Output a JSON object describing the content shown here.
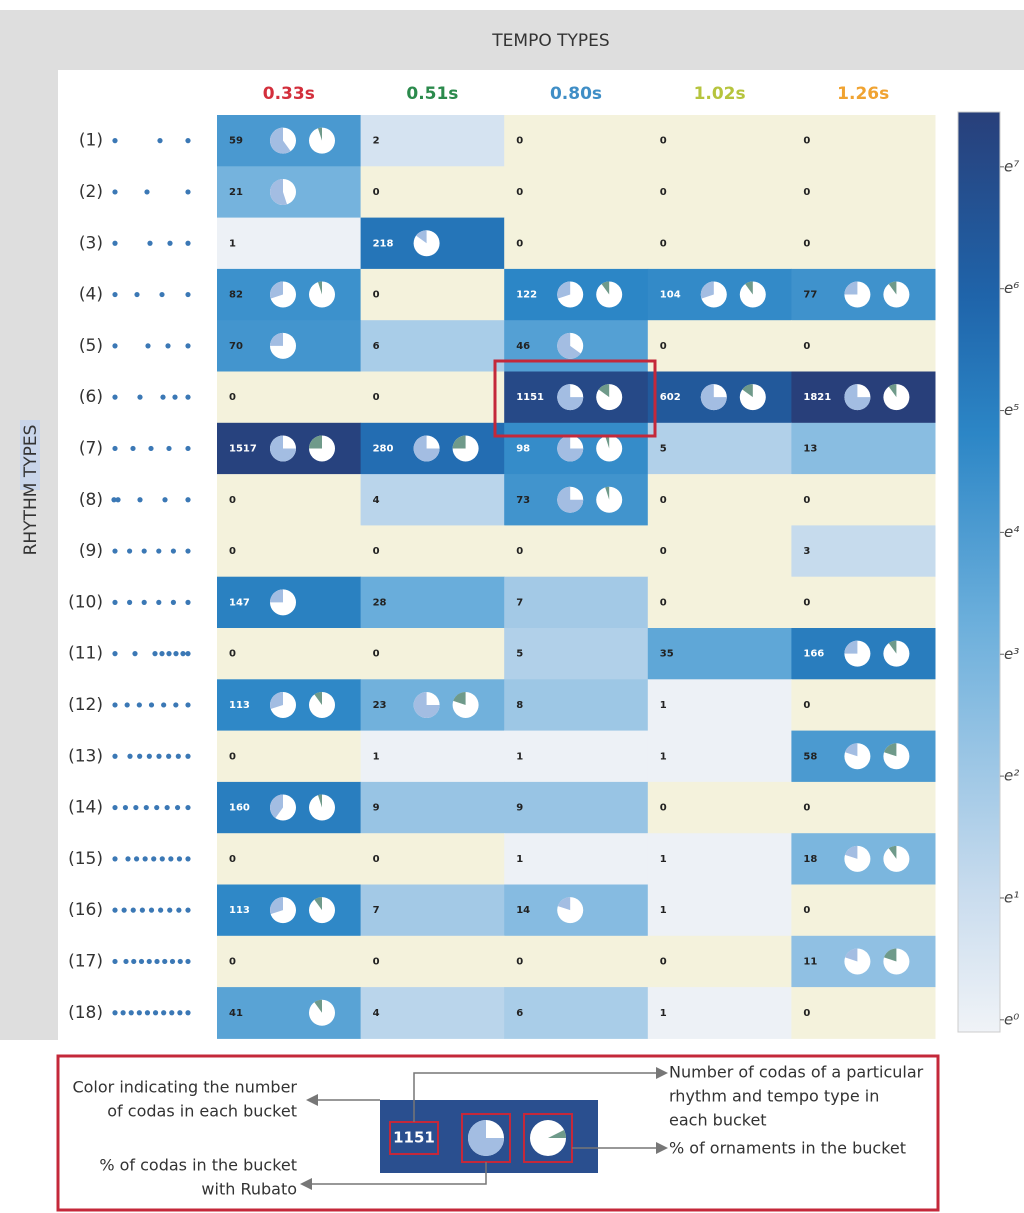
{
  "chart_data": {
    "type": "heatmap",
    "x_title": "TEMPO TYPES",
    "y_title": "RHYTHM TYPES",
    "categories": [
      "0.33s",
      "0.51s",
      "0.80s",
      "1.02s",
      "1.26s"
    ],
    "category_colors": [
      "#d32f3c",
      "#2b8a4c",
      "#3f8ec6",
      "#b6c43d",
      "#f0a331"
    ],
    "rows": [
      "(1)",
      "(2)",
      "(3)",
      "(4)",
      "(5)",
      "(6)",
      "(7)",
      "(8)",
      "(9)",
      "(10)",
      "(11)",
      "(12)",
      "(13)",
      "(14)",
      "(15)",
      "(16)",
      "(17)",
      "(18)"
    ],
    "values": [
      [
        59,
        2,
        0,
        0,
        0
      ],
      [
        21,
        0,
        0,
        0,
        0
      ],
      [
        1,
        218,
        0,
        0,
        0
      ],
      [
        82,
        0,
        122,
        104,
        77
      ],
      [
        70,
        6,
        46,
        0,
        0
      ],
      [
        0,
        0,
        1151,
        602,
        1821
      ],
      [
        1517,
        280,
        98,
        5,
        13
      ],
      [
        0,
        4,
        73,
        0,
        0
      ],
      [
        0,
        0,
        0,
        0,
        3
      ],
      [
        147,
        28,
        7,
        0,
        0
      ],
      [
        0,
        0,
        5,
        35,
        166
      ],
      [
        113,
        23,
        8,
        1,
        0
      ],
      [
        0,
        1,
        1,
        1,
        58
      ],
      [
        160,
        9,
        9,
        0,
        0
      ],
      [
        0,
        0,
        1,
        1,
        18
      ],
      [
        113,
        7,
        14,
        1,
        0
      ],
      [
        0,
        0,
        0,
        0,
        11
      ],
      [
        41,
        4,
        6,
        1,
        0
      ]
    ],
    "rubato_pct": [
      [
        60,
        null,
        null,
        null,
        null
      ],
      [
        55,
        null,
        null,
        null,
        null
      ],
      [
        null,
        15,
        null,
        null,
        null
      ],
      [
        30,
        null,
        30,
        30,
        25
      ],
      [
        25,
        null,
        65,
        null,
        null
      ],
      [
        null,
        null,
        75,
        75,
        75
      ],
      [
        75,
        75,
        75,
        null,
        null
      ],
      [
        null,
        null,
        75,
        null,
        null
      ],
      [
        null,
        null,
        null,
        null,
        null
      ],
      [
        25,
        null,
        null,
        null,
        null
      ],
      [
        null,
        null,
        null,
        null,
        25
      ],
      [
        30,
        75,
        null,
        null,
        null
      ],
      [
        null,
        null,
        null,
        null,
        20
      ],
      [
        40,
        null,
        null,
        null,
        null
      ],
      [
        null,
        null,
        null,
        null,
        20
      ],
      [
        30,
        null,
        20,
        null,
        null
      ],
      [
        null,
        null,
        null,
        null,
        20
      ],
      [
        null,
        null,
        null,
        null,
        null
      ]
    ],
    "ornament_pct": [
      [
        5,
        null,
        null,
        null,
        null
      ],
      [
        null,
        null,
        null,
        null,
        null
      ],
      [
        null,
        null,
        null,
        null,
        null
      ],
      [
        5,
        null,
        10,
        10,
        10
      ],
      [
        null,
        null,
        null,
        null,
        null
      ],
      [
        null,
        null,
        15,
        15,
        10
      ],
      [
        25,
        25,
        5,
        null,
        null
      ],
      [
        null,
        null,
        5,
        null,
        null
      ],
      [
        null,
        null,
        null,
        null,
        null
      ],
      [
        null,
        null,
        null,
        null,
        null
      ],
      [
        null,
        null,
        null,
        null,
        10
      ],
      [
        10,
        20,
        null,
        null,
        null
      ],
      [
        null,
        null,
        null,
        null,
        20
      ],
      [
        5,
        null,
        null,
        null,
        null
      ],
      [
        null,
        null,
        null,
        null,
        10
      ],
      [
        10,
        null,
        null,
        null,
        null
      ],
      [
        null,
        null,
        null,
        null,
        20
      ],
      [
        10,
        null,
        null,
        null,
        null
      ]
    ],
    "log_scale": true,
    "zero_color": "#f4f2dc",
    "colorscale": [
      [
        0,
        "#f0f3f7"
      ],
      [
        0.15,
        "#c9dcee"
      ],
      [
        0.45,
        "#6aaedb"
      ],
      [
        0.65,
        "#2c86c6"
      ],
      [
        0.8,
        "#1f64aa"
      ],
      [
        1,
        "#283f7a"
      ]
    ],
    "rubato_color": "#a3bde2",
    "ornament_color": "#6f9a8a",
    "zlim": [
      -0.1,
      7.45
    ],
    "zticks": [
      {
        "value": 0,
        "label": "e⁰"
      },
      {
        "value": 1,
        "label": "e¹"
      },
      {
        "value": 2,
        "label": "e²"
      },
      {
        "value": 3,
        "label": "e³"
      },
      {
        "value": 4,
        "label": "e⁴"
      },
      {
        "value": 5,
        "label": "e⁵"
      },
      {
        "value": 6,
        "label": "e⁶"
      },
      {
        "value": 7,
        "label": "e⁷"
      }
    ]
  },
  "legend": {
    "color_note": [
      "Color indicating the number",
      "of codas in each bucket"
    ],
    "count_note": [
      "Number of codas of a particular",
      "rhythm and tempo type in",
      "each bucket"
    ],
    "ornament_note": "% of ornaments in the bucket",
    "rubato_note": [
      "% of codas in the bucket",
      "with Rubato"
    ],
    "example_count": "1151"
  }
}
